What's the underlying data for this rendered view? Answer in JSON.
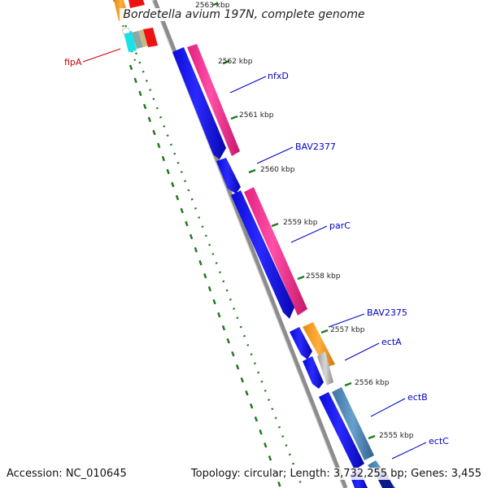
{
  "title": "Bordetella avium 197N, complete genome",
  "footer": {
    "accession": "Accession: NC_010645",
    "summary": "Topology: circular; Length: 3,732,255 bp; Genes: 3,455"
  },
  "ticks": [
    {
      "label": "2563 kbp"
    },
    {
      "label": "2562 kbp"
    },
    {
      "label": "2561 kbp"
    },
    {
      "label": "2560 kbp"
    },
    {
      "label": "2559 kbp"
    },
    {
      "label": "2558 kbp"
    },
    {
      "label": "2557 kbp"
    },
    {
      "label": "2556 kbp"
    },
    {
      "label": "2555 kbp"
    }
  ],
  "gene_labels": [
    {
      "text": "fipA",
      "color": "#d00000"
    },
    {
      "text": "nfxD",
      "color": "#0000c8"
    },
    {
      "text": "BAV2377",
      "color": "#0000c8"
    },
    {
      "text": "parC",
      "color": "#0000c8"
    },
    {
      "text": "BAV2375",
      "color": "#0000c8"
    },
    {
      "text": "ectA",
      "color": "#0000c8"
    },
    {
      "text": "ectB",
      "color": "#0000c8"
    },
    {
      "text": "ectC",
      "color": "#0000c8"
    }
  ],
  "colors": {
    "backbone": "#8c8c8c",
    "cds_blue": "#0a0ae6",
    "cog_pink": "#ee2a8a",
    "cog_orange": "#f39a1a",
    "cog_steel": "#4a84b4",
    "cog_cyan": "#19e2e8",
    "cog_red": "#ee1111",
    "gc_green": "#1f7a1f",
    "dark_blue": "#0a1a8a"
  }
}
